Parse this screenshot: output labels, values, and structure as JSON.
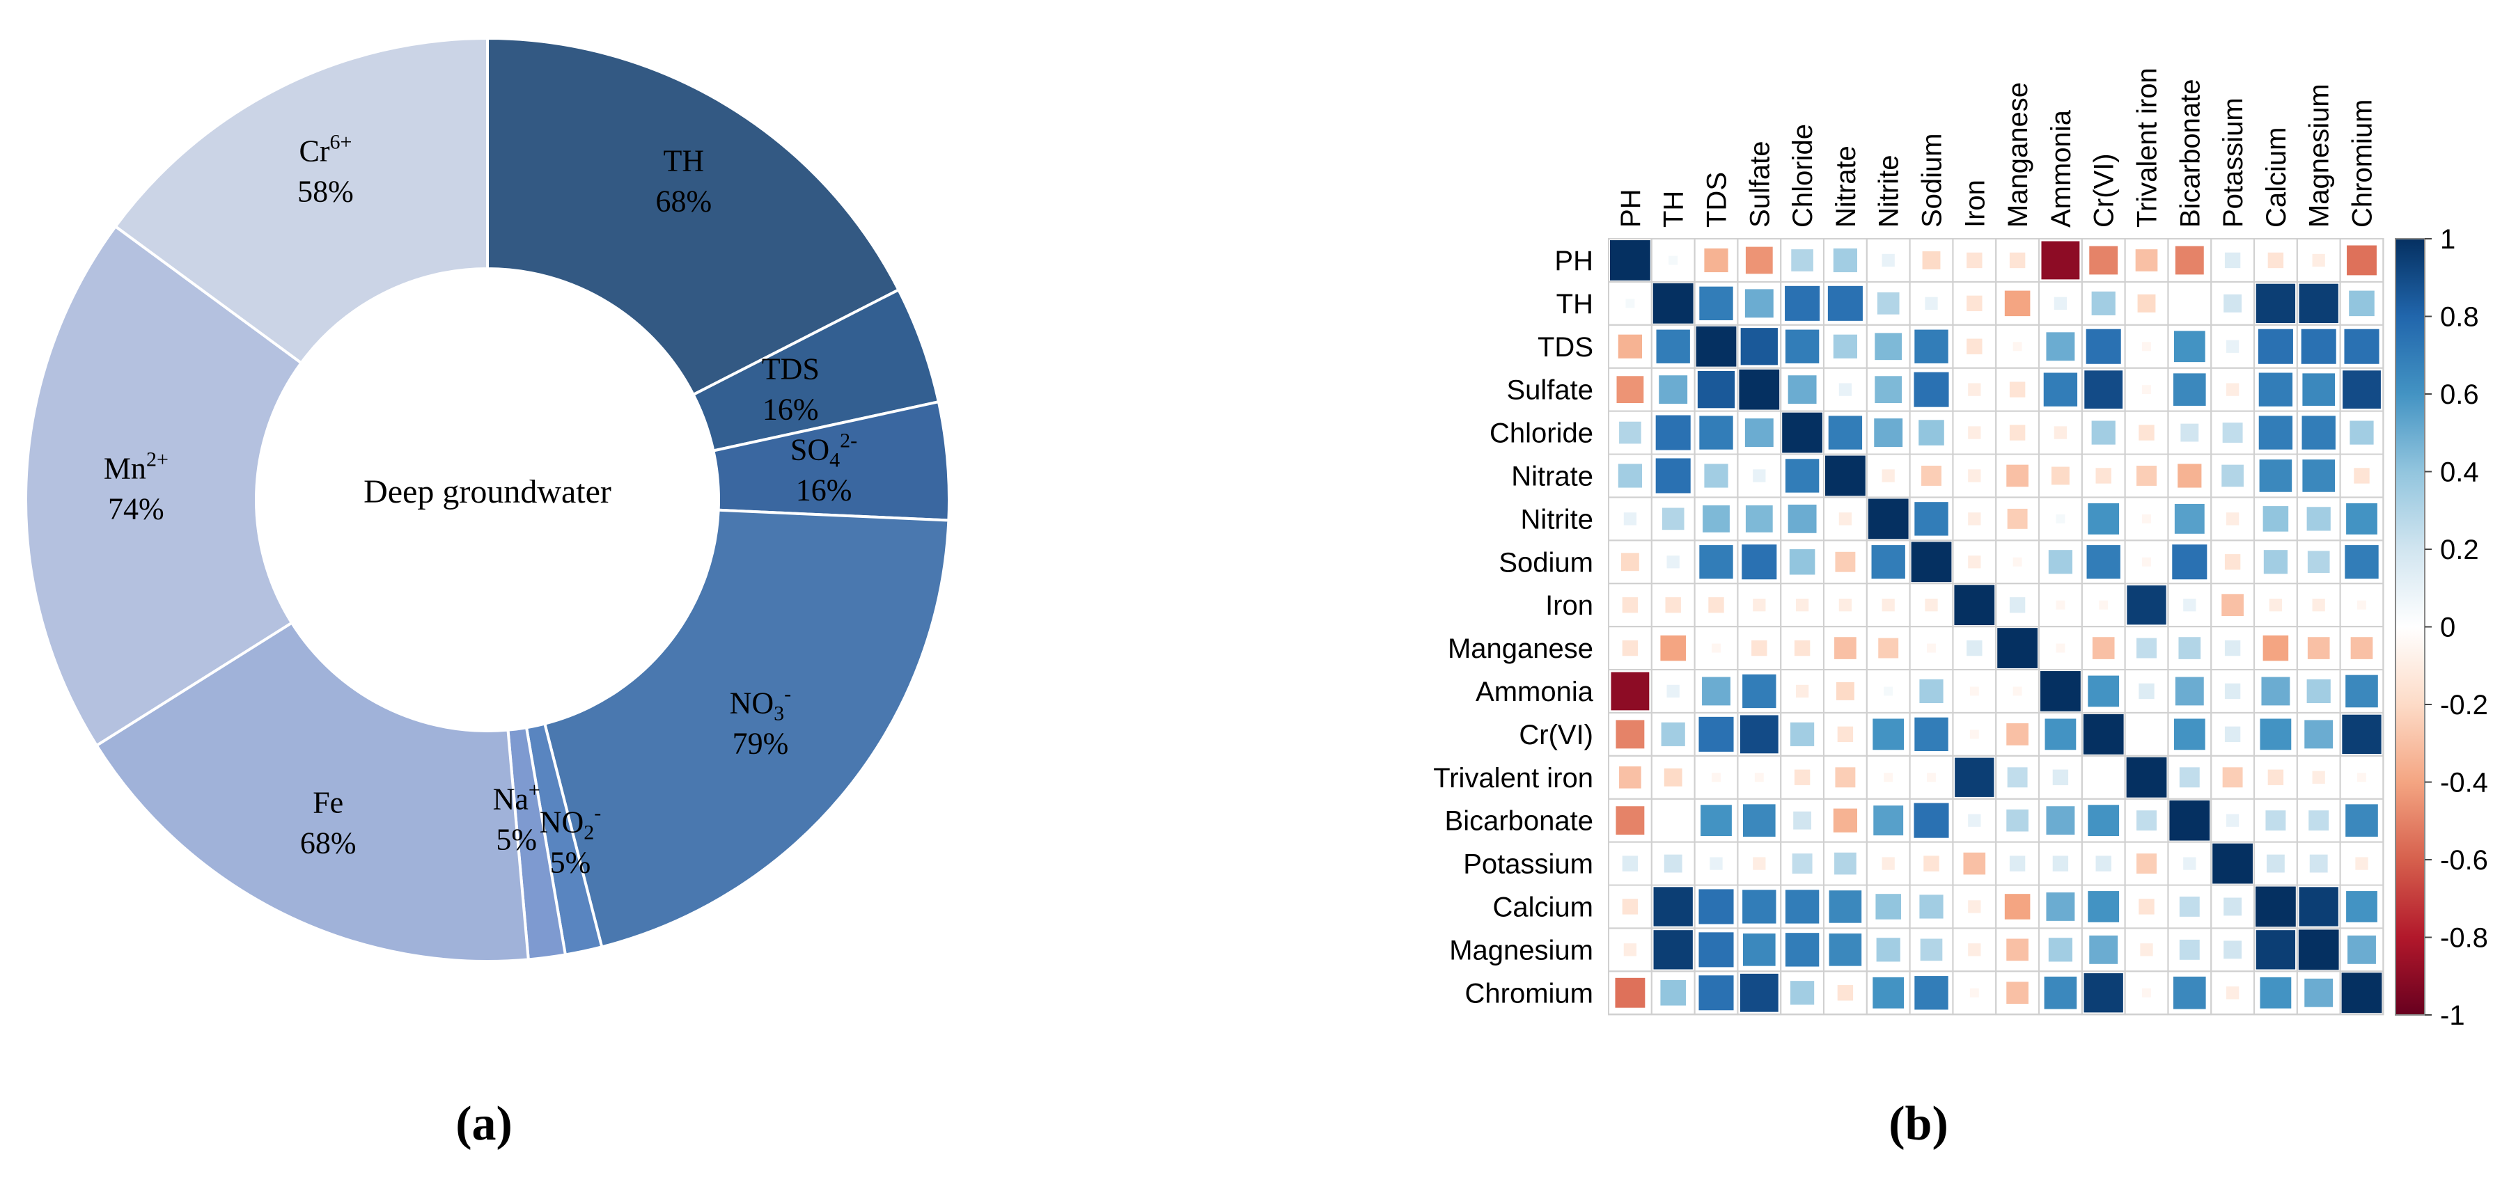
{
  "panel_labels": {
    "a": "(a)",
    "b": "(b)"
  },
  "chart_data": [
    {
      "type": "pie",
      "variant": "donut",
      "center_label": "Deep groundwater",
      "slices": [
        {
          "label": "TH",
          "label_base": "TH",
          "label_sub": "",
          "label_sup": "",
          "percent_text": "68%",
          "value": 68,
          "color": "#335983"
        },
        {
          "label": "TDS",
          "label_base": "TDS",
          "label_sub": "",
          "label_sup": "",
          "percent_text": "16%",
          "value": 16,
          "color": "#335F91"
        },
        {
          "label": "SO42-",
          "label_base": "SO",
          "label_sub": "4",
          "label_sup": "2-",
          "percent_text": "16%",
          "value": 16,
          "color": "#3A67A0"
        },
        {
          "label": "NO3-",
          "label_base": "NO",
          "label_sub": "3",
          "label_sup": "-",
          "percent_text": "79%",
          "value": 79,
          "color": "#4A78AF"
        },
        {
          "label": "NO2-",
          "label_base": "NO",
          "label_sub": "2",
          "label_sup": "-",
          "percent_text": "5%",
          "value": 5,
          "color": "#5985C0"
        },
        {
          "label": "Na+",
          "label_base": "Na",
          "label_sub": "",
          "label_sup": "+",
          "percent_text": "5%",
          "value": 5,
          "color": "#7E9AD0"
        },
        {
          "label": "Fe",
          "label_base": "Fe",
          "label_sub": "",
          "label_sup": "",
          "percent_text": "68%",
          "value": 68,
          "color": "#A0B2D9"
        },
        {
          "label": "Mn2+",
          "label_base": "Mn",
          "label_sub": "",
          "label_sup": "2+",
          "percent_text": "74%",
          "value": 74,
          "color": "#B4C1DF"
        },
        {
          "label": "Cr6+",
          "label_base": "Cr",
          "label_sub": "",
          "label_sup": "6+",
          "percent_text": "58%",
          "value": 58,
          "color": "#CBD4E6"
        }
      ]
    },
    {
      "type": "heatmap",
      "variables": [
        "PH",
        "TH",
        "TDS",
        "Sulfate",
        "Chloride",
        "Nitrate",
        "Nitrite",
        "Sodium",
        "Iron",
        "Manganese",
        "Ammonia",
        "Cr(VI)",
        "Trivalent iron",
        "Bicarbonate",
        "Potassium",
        "Calcium",
        "Magnesium",
        "Chromium"
      ],
      "matrix": [
        [
          1,
          0.05,
          -0.35,
          -0.45,
          0.3,
          0.35,
          0.1,
          -0.2,
          -0.15,
          -0.15,
          -0.9,
          -0.5,
          -0.3,
          -0.5,
          0.15,
          -0.15,
          -0.1,
          -0.55
        ],
        [
          0.05,
          1,
          0.7,
          0.5,
          0.75,
          0.75,
          0.3,
          0.1,
          -0.15,
          -0.4,
          0.1,
          0.35,
          -0.2,
          0,
          0.2,
          0.95,
          0.95,
          0.4
        ],
        [
          -0.35,
          0.7,
          1,
          0.85,
          0.7,
          0.35,
          0.45,
          0.7,
          -0.15,
          -0.05,
          0.5,
          0.75,
          -0.05,
          0.6,
          0.1,
          0.75,
          0.75,
          0.75
        ],
        [
          -0.45,
          0.5,
          0.85,
          1,
          0.5,
          0.1,
          0.45,
          0.75,
          -0.1,
          -0.15,
          0.7,
          0.9,
          -0.05,
          0.65,
          -0.1,
          0.7,
          0.65,
          0.9
        ],
        [
          0.3,
          0.75,
          0.7,
          0.5,
          1,
          0.7,
          0.5,
          0.4,
          -0.1,
          -0.15,
          -0.1,
          0.35,
          -0.15,
          0.2,
          0.25,
          0.7,
          0.7,
          0.35
        ],
        [
          0.35,
          0.75,
          0.35,
          0.1,
          0.7,
          1,
          -0.1,
          -0.25,
          -0.1,
          -0.3,
          -0.2,
          -0.15,
          -0.25,
          -0.35,
          0.3,
          0.65,
          0.65,
          -0.15
        ],
        [
          0.1,
          0.3,
          0.45,
          0.45,
          0.5,
          -0.1,
          1,
          0.7,
          -0.1,
          -0.25,
          0.05,
          0.6,
          -0.05,
          0.55,
          -0.1,
          0.4,
          0.35,
          0.6
        ],
        [
          -0.2,
          0.1,
          0.7,
          0.75,
          0.4,
          -0.25,
          0.7,
          1,
          -0.1,
          -0.05,
          0.35,
          0.7,
          -0.05,
          0.75,
          -0.15,
          0.35,
          0.3,
          0.7
        ],
        [
          -0.15,
          -0.15,
          -0.15,
          -0.1,
          -0.1,
          -0.1,
          -0.1,
          -0.1,
          1,
          0.15,
          -0.05,
          -0.05,
          0.95,
          0.1,
          -0.3,
          -0.1,
          -0.1,
          -0.05
        ],
        [
          -0.15,
          -0.4,
          -0.05,
          -0.15,
          -0.15,
          -0.3,
          -0.25,
          -0.05,
          0.15,
          1,
          -0.05,
          -0.3,
          0.25,
          0.3,
          0.15,
          -0.4,
          -0.3,
          -0.3
        ],
        [
          -0.9,
          0.1,
          0.5,
          0.7,
          -0.1,
          -0.2,
          0.05,
          0.35,
          -0.05,
          -0.05,
          1,
          0.6,
          0.15,
          0.5,
          0.15,
          0.5,
          0.35,
          0.65
        ],
        [
          -0.5,
          0.35,
          0.75,
          0.9,
          0.35,
          -0.15,
          0.6,
          0.7,
          -0.05,
          -0.3,
          0.6,
          1,
          0,
          0.6,
          0.15,
          0.6,
          0.5,
          0.95
        ],
        [
          -0.3,
          -0.2,
          -0.05,
          -0.05,
          -0.15,
          -0.25,
          -0.05,
          -0.05,
          0.95,
          0.25,
          0.15,
          0,
          1,
          0.25,
          -0.25,
          -0.15,
          -0.1,
          -0.05
        ],
        [
          -0.5,
          0,
          0.6,
          0.65,
          0.2,
          -0.35,
          0.55,
          0.75,
          0.1,
          0.3,
          0.5,
          0.6,
          0.25,
          1,
          0.1,
          0.25,
          0.25,
          0.65
        ],
        [
          0.15,
          0.2,
          0.1,
          -0.1,
          0.25,
          0.3,
          -0.1,
          -0.15,
          -0.3,
          0.15,
          0.15,
          0.15,
          -0.25,
          0.1,
          1,
          0.2,
          0.2,
          -0.1
        ],
        [
          -0.15,
          0.95,
          0.75,
          0.7,
          0.7,
          0.65,
          0.4,
          0.35,
          -0.1,
          -0.4,
          0.5,
          0.6,
          -0.15,
          0.25,
          0.2,
          1,
          0.95,
          0.6
        ],
        [
          -0.1,
          0.95,
          0.75,
          0.65,
          0.7,
          0.65,
          0.35,
          0.3,
          -0.1,
          -0.3,
          0.35,
          0.5,
          -0.1,
          0.25,
          0.2,
          0.95,
          1,
          0.5
        ],
        [
          -0.55,
          0.4,
          0.75,
          0.9,
          0.35,
          -0.15,
          0.6,
          0.7,
          -0.05,
          -0.3,
          0.65,
          0.95,
          -0.05,
          0.65,
          -0.1,
          0.6,
          0.5,
          1
        ]
      ],
      "colorbar": {
        "range": [
          -1,
          1
        ],
        "tick_labels": [
          "1",
          "0.8",
          "0.6",
          "0.4",
          "0.2",
          "0",
          "-0.2",
          "-0.4",
          "-0.6",
          "-0.8",
          "-1"
        ],
        "colors_low_to_high": [
          "#67001F",
          "#B2182B",
          "#D6604D",
          "#F4A582",
          "#FDDBC7",
          "#FFFFFF",
          "#D1E5F0",
          "#92C5DE",
          "#4393C3",
          "#2166AC",
          "#053061"
        ]
      }
    }
  ]
}
